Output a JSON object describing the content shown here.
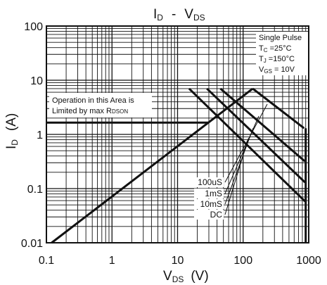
{
  "chart_data": {
    "type": "line",
    "title": {
      "main": "I",
      "main_sub": "D",
      "sep": "-",
      "v": "V",
      "v_sub": "DS"
    },
    "xlabel": {
      "main": "V",
      "sub": "DS",
      "unit": "(V)"
    },
    "ylabel": {
      "main": "I",
      "sub": "D",
      "unit": "(A)"
    },
    "xscale": "log",
    "yscale": "log",
    "xlim": [
      0.1,
      1000
    ],
    "ylim": [
      0.01,
      100
    ],
    "grid": true,
    "x_ticks": [
      "0.1",
      "1",
      "10",
      "100",
      "1000"
    ],
    "y_ticks": [
      "0.01",
      "0.1",
      "1",
      "10",
      "100"
    ],
    "annotation_box": {
      "line1": "Operation in this Area is",
      "line2_main": "Limited by max R",
      "line2_sub": "DSON"
    },
    "conditions": [
      {
        "main": "Single Pulse",
        "sub": "",
        "rest": ""
      },
      {
        "main": "T",
        "sub": "C",
        "rest": " =25°C"
      },
      {
        "main": "T",
        "sub": "J",
        "rest": " =150°C"
      },
      {
        "main": "V",
        "sub": "GS",
        "rest": " = 10V"
      }
    ],
    "rdson_limit": {
      "x": [
        0.12,
        140
      ],
      "y": [
        0.01,
        7
      ]
    },
    "current_limit": {
      "x": [
        0.1,
        30
      ],
      "y": [
        1.65,
        1.65
      ]
    },
    "series": [
      {
        "name": "100uS",
        "x": [
          140,
          850
        ],
        "y": [
          7,
          1.3
        ]
      },
      {
        "name": "1mS",
        "x": [
          45,
          870
        ],
        "y": [
          7,
          0.32
        ]
      },
      {
        "name": "10mS",
        "x": [
          28,
          880
        ],
        "y": [
          7,
          0.13
        ]
      },
      {
        "name": "DC",
        "x": [
          15,
          880
        ],
        "y": [
          7,
          0.058
        ]
      }
    ],
    "voltage_limit": {
      "x": [
        900,
        900
      ],
      "y": [
        1.3,
        0.01
      ]
    }
  }
}
